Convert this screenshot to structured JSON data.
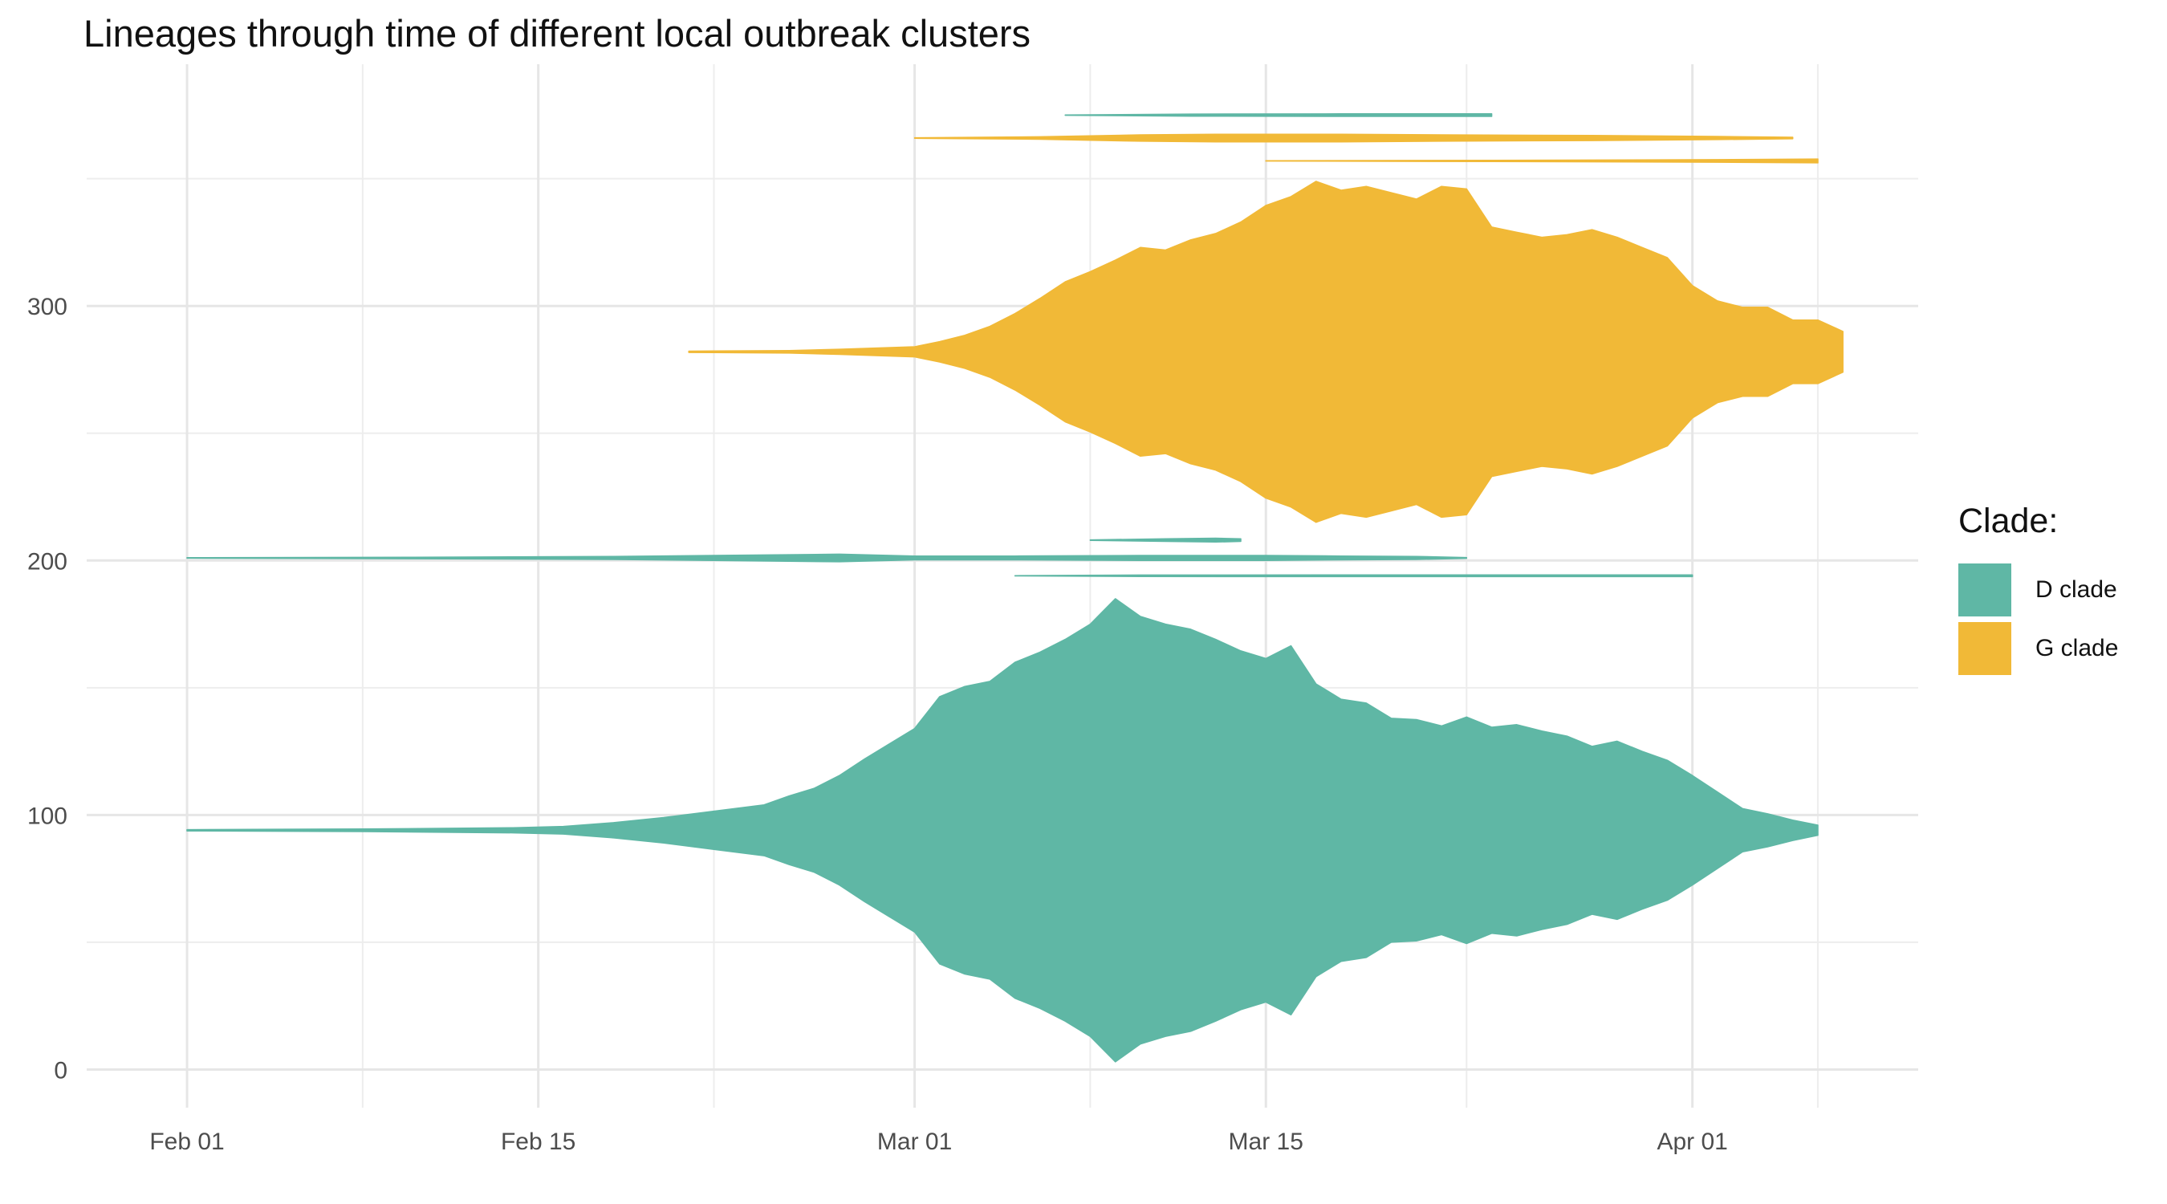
{
  "chart_data": {
    "type": "area",
    "title": "Lineages through time of different local outbreak clusters",
    "xlabel": "",
    "ylabel": "",
    "x_ticks": [
      "Feb 01",
      "Feb 15",
      "Mar 01",
      "Mar 15",
      "Apr 01"
    ],
    "x_tick_dates": [
      "2020-02-01",
      "2020-02-15",
      "2020-03-01",
      "2020-03-15",
      "2020-04-01"
    ],
    "y_ticks": [
      0,
      100,
      200,
      300
    ],
    "ylim": [
      -15,
      395
    ],
    "xlim": [
      "2020-01-28",
      "2020-04-10"
    ],
    "grid": true,
    "legend": {
      "title": "Clade:",
      "placement": "right",
      "entries": [
        {
          "label": "D clade",
          "color": "#5fb7a5"
        },
        {
          "label": "G clade",
          "color": "#f1b937"
        }
      ]
    },
    "series": [
      {
        "clade": "D clade",
        "color": "#5fb7a5",
        "center": 94,
        "points": [
          [
            "2020-02-01",
            0.5
          ],
          [
            "2020-02-08",
            1
          ],
          [
            "2020-02-14",
            2
          ],
          [
            "2020-02-16",
            3
          ],
          [
            "2020-02-18",
            6
          ],
          [
            "2020-02-20",
            10
          ],
          [
            "2020-02-22",
            15
          ],
          [
            "2020-02-24",
            20
          ],
          [
            "2020-02-25",
            27
          ],
          [
            "2020-02-26",
            33
          ],
          [
            "2020-02-27",
            43
          ],
          [
            "2020-02-28",
            56
          ],
          [
            "2020-02-29",
            68
          ],
          [
            "2020-03-01",
            80
          ],
          [
            "2020-03-02",
            105
          ],
          [
            "2020-03-03",
            113
          ],
          [
            "2020-03-04",
            117
          ],
          [
            "2020-03-05",
            132
          ],
          [
            "2020-03-06",
            140
          ],
          [
            "2020-03-07",
            150
          ],
          [
            "2020-03-08",
            162
          ],
          [
            "2020-03-09",
            182
          ],
          [
            "2020-03-10",
            168
          ],
          [
            "2020-03-11",
            162
          ],
          [
            "2020-03-12",
            158
          ],
          [
            "2020-03-13",
            150
          ],
          [
            "2020-03-14",
            141
          ],
          [
            "2020-03-15",
            135
          ],
          [
            "2020-03-16",
            145
          ],
          [
            "2020-03-17",
            115
          ],
          [
            "2020-03-18",
            103
          ],
          [
            "2020-03-19",
            100
          ],
          [
            "2020-03-20",
            88
          ],
          [
            "2020-03-21",
            87
          ],
          [
            "2020-03-22",
            82
          ],
          [
            "2020-03-23",
            89
          ],
          [
            "2020-03-24",
            81
          ],
          [
            "2020-03-25",
            83
          ],
          [
            "2020-03-26",
            78
          ],
          [
            "2020-03-27",
            74
          ],
          [
            "2020-03-28",
            66
          ],
          [
            "2020-03-29",
            70
          ],
          [
            "2020-03-30",
            62
          ],
          [
            "2020-03-31",
            55
          ],
          [
            "2020-04-01",
            43
          ],
          [
            "2020-04-02",
            30
          ],
          [
            "2020-04-03",
            17
          ],
          [
            "2020-04-04",
            13
          ],
          [
            "2020-04-05",
            8
          ],
          [
            "2020-04-06",
            4
          ],
          [
            "2020-04-06",
            1
          ]
        ]
      },
      {
        "clade": "G clade",
        "color": "#f1b937",
        "center": 282,
        "points": [
          [
            "2020-02-21",
            0.5
          ],
          [
            "2020-02-25",
            1
          ],
          [
            "2020-02-27",
            2
          ],
          [
            "2020-03-01",
            4
          ],
          [
            "2020-03-02",
            8
          ],
          [
            "2020-03-03",
            13
          ],
          [
            "2020-03-04",
            20
          ],
          [
            "2020-03-05",
            30
          ],
          [
            "2020-03-06",
            42
          ],
          [
            "2020-03-07",
            55
          ],
          [
            "2020-03-08",
            63
          ],
          [
            "2020-03-09",
            72
          ],
          [
            "2020-03-10",
            82
          ],
          [
            "2020-03-11",
            80
          ],
          [
            "2020-03-12",
            88
          ],
          [
            "2020-03-13",
            93
          ],
          [
            "2020-03-14",
            102
          ],
          [
            "2020-03-15",
            115
          ],
          [
            "2020-03-16",
            122
          ],
          [
            "2020-03-17",
            134
          ],
          [
            "2020-03-18",
            127
          ],
          [
            "2020-03-19",
            130
          ],
          [
            "2020-03-20",
            125
          ],
          [
            "2020-03-21",
            120
          ],
          [
            "2020-03-22",
            130
          ],
          [
            "2020-03-23",
            128
          ],
          [
            "2020-03-24",
            98
          ],
          [
            "2020-03-25",
            94
          ],
          [
            "2020-03-26",
            90
          ],
          [
            "2020-03-27",
            92
          ],
          [
            "2020-03-28",
            96
          ],
          [
            "2020-03-29",
            90
          ],
          [
            "2020-03-30",
            82
          ],
          [
            "2020-03-31",
            74
          ],
          [
            "2020-04-01",
            52
          ],
          [
            "2020-04-02",
            40
          ],
          [
            "2020-04-03",
            35
          ],
          [
            "2020-04-04",
            35
          ],
          [
            "2020-04-05",
            25
          ],
          [
            "2020-04-06",
            25
          ],
          [
            "2020-04-07",
            16
          ],
          [
            "2020-04-07",
            12
          ]
        ]
      },
      {
        "clade": "D clade",
        "color": "#5fb7a5",
        "center": 201,
        "points": [
          [
            "2020-02-01",
            0.2
          ],
          [
            "2020-02-10",
            0.6
          ],
          [
            "2020-02-18",
            1.2
          ],
          [
            "2020-02-22",
            2
          ],
          [
            "2020-02-27",
            3
          ],
          [
            "2020-03-01",
            1.5
          ],
          [
            "2020-03-05",
            1.5
          ],
          [
            "2020-03-10",
            2
          ],
          [
            "2020-03-15",
            2
          ],
          [
            "2020-03-18",
            1.5
          ],
          [
            "2020-03-21",
            1.2
          ],
          [
            "2020-03-23",
            0.3
          ]
        ]
      },
      {
        "clade": "D clade",
        "color": "#5fb7a5",
        "center": 208,
        "points": [
          [
            "2020-03-08",
            0.2
          ],
          [
            "2020-03-11",
            1
          ],
          [
            "2020-03-13",
            1.5
          ],
          [
            "2020-03-14",
            1
          ]
        ]
      },
      {
        "clade": "D clade",
        "color": "#5fb7a5",
        "center": 194,
        "points": [
          [
            "2020-03-05",
            0.1
          ],
          [
            "2020-03-10",
            0.6
          ],
          [
            "2020-03-20",
            0.7
          ],
          [
            "2020-04-01",
            0.7
          ]
        ]
      },
      {
        "clade": "D clade",
        "color": "#5fb7a5",
        "center": 375,
        "points": [
          [
            "2020-03-07",
            0.1
          ],
          [
            "2020-03-12",
            0.8
          ],
          [
            "2020-03-18",
            1
          ],
          [
            "2020-03-24",
            1
          ]
        ]
      },
      {
        "clade": "G clade",
        "color": "#f1b937",
        "center": 366,
        "points": [
          [
            "2020-03-01",
            0.2
          ],
          [
            "2020-03-06",
            1
          ],
          [
            "2020-03-10",
            2.5
          ],
          [
            "2020-03-13",
            3
          ],
          [
            "2020-03-18",
            3
          ],
          [
            "2020-03-22",
            2.5
          ],
          [
            "2020-03-28",
            2
          ],
          [
            "2020-04-02",
            1.2
          ],
          [
            "2020-04-05",
            0.6
          ]
        ]
      },
      {
        "clade": "G clade",
        "color": "#f1b937",
        "center": 357,
        "points": [
          [
            "2020-03-15",
            0.1
          ],
          [
            "2020-03-24",
            0.5
          ],
          [
            "2020-04-02",
            1
          ],
          [
            "2020-04-06",
            1.5
          ]
        ]
      }
    ]
  }
}
